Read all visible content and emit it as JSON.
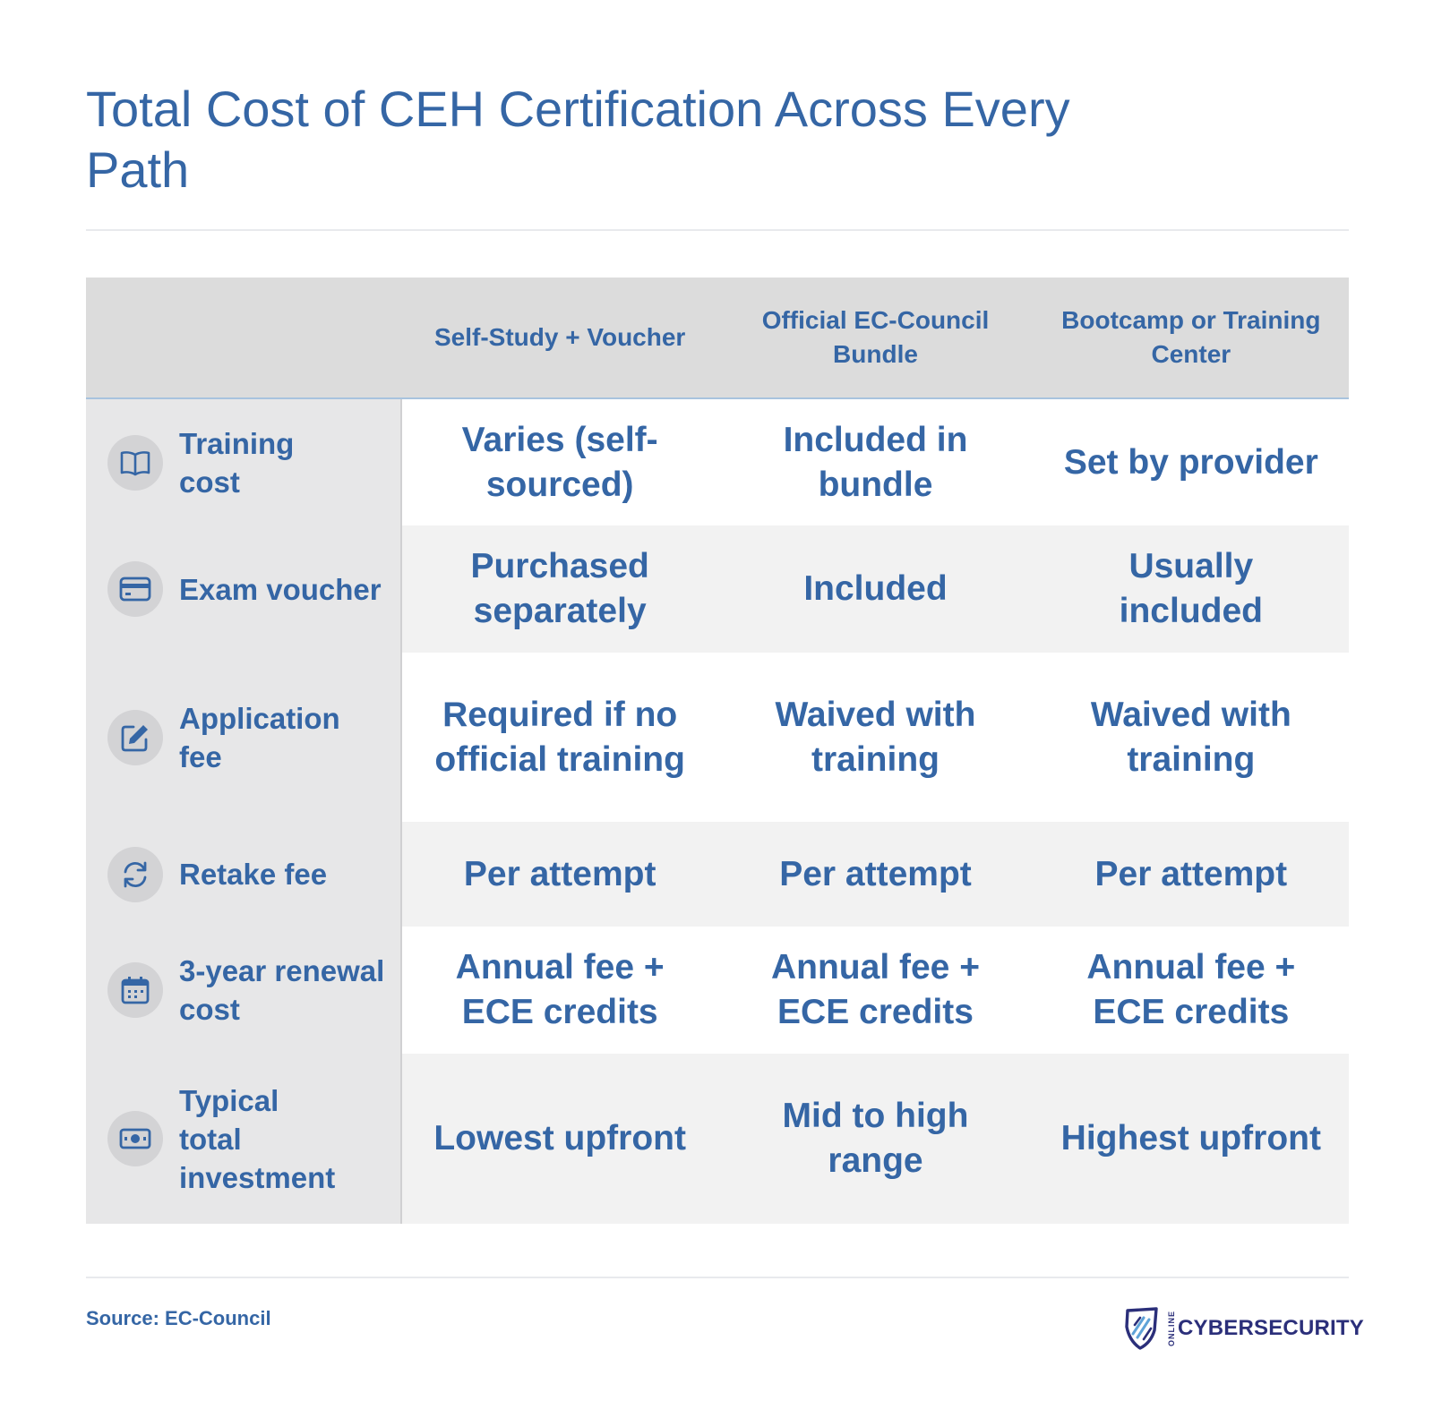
{
  "title": "Total Cost of CEH Certification Across Every Path",
  "columns": [
    "Self-Study + Voucher",
    "Official EC-Council Bundle",
    "Bootcamp or Training Center"
  ],
  "rows": [
    {
      "label": "Training cost",
      "icon": "book-icon",
      "cells": [
        "Varies (self-sourced)",
        "Included in bundle",
        "Set by provider"
      ]
    },
    {
      "label": "Exam voucher",
      "icon": "credit-card-icon",
      "cells": [
        "Purchased separately",
        "Included",
        "Usually included"
      ]
    },
    {
      "label": "Application fee",
      "icon": "edit-icon",
      "cells": [
        "Required if no official training",
        "Waived with training",
        "Waived with training"
      ]
    },
    {
      "label": "Retake fee",
      "icon": "refresh-icon",
      "cells": [
        "Per attempt",
        "Per attempt",
        "Per attempt"
      ]
    },
    {
      "label": "3-year renewal cost",
      "icon": "calendar-icon",
      "cells": [
        "Annual fee + ECE credits",
        "Annual fee + ECE credits",
        "Annual fee + ECE credits"
      ]
    },
    {
      "label": "Typical total investment",
      "icon": "money-icon",
      "cells": [
        "Lowest upfront",
        "Mid to high range",
        "Highest upfront"
      ]
    }
  ],
  "source": "Source: EC-Council",
  "logo": {
    "prefix": "ONLINE",
    "brand": "CYBERSECURITY"
  },
  "colors": {
    "text": "#3566a5",
    "header_bg": "#dcdcdc",
    "rowhead_bg": "#e7e7e8",
    "alt_row_bg": "#f2f2f2",
    "brand": "#2b2f7a"
  }
}
